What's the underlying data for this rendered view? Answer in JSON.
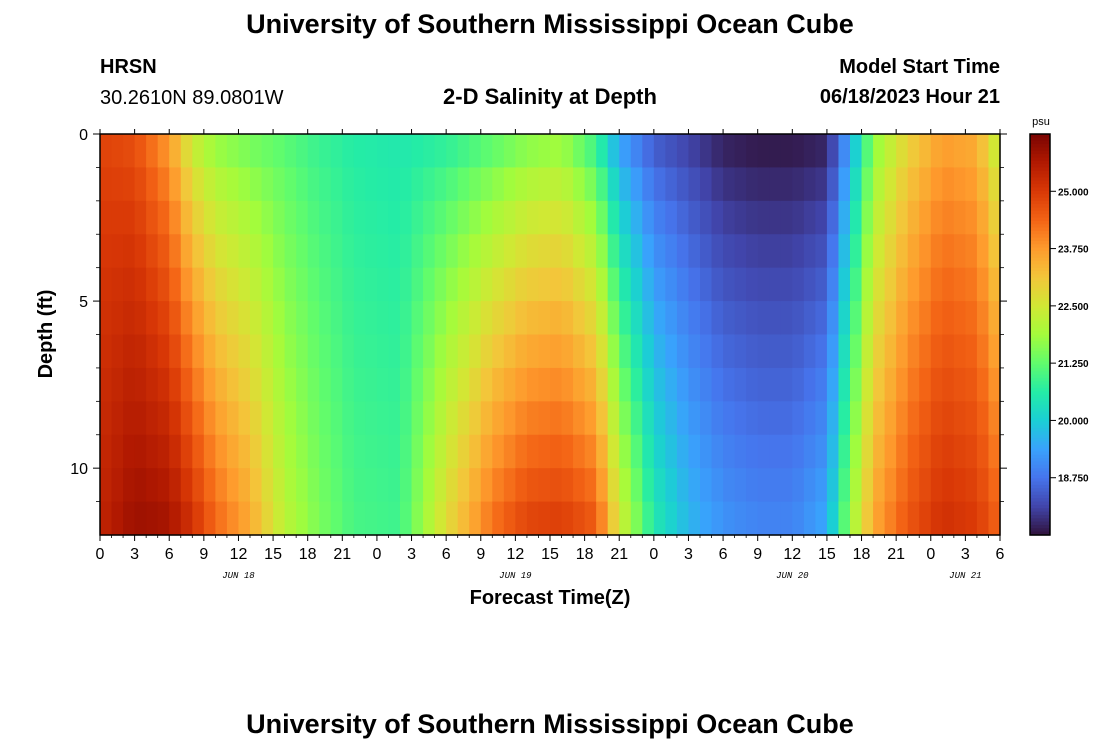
{
  "page": {
    "title": "University of Southern Mississippi Ocean Cube",
    "station_name": "HRSN",
    "station_coords": "30.2610N  89.0801W",
    "subtitle": "2-D Salinity at Depth",
    "model_start_label": "Model Start Time",
    "model_start_value": "06/18/2023 Hour 21",
    "footer_title": "University of Southern Mississippi Ocean Cube"
  },
  "chart_data": {
    "type": "heatmap",
    "title": "2-D Salinity at Depth",
    "xlabel": "Forecast Time(Z)",
    "ylabel": "Depth (ft)",
    "x_hour_ticks": [
      "0",
      "3",
      "6",
      "9",
      "12",
      "15",
      "18",
      "21",
      "0",
      "3",
      "6",
      "9",
      "12",
      "15",
      "18",
      "21",
      "0",
      "3",
      "6",
      "9",
      "12",
      "15",
      "18",
      "21",
      "0",
      "3",
      "6"
    ],
    "x_date_labels": [
      {
        "label": "JUN 18",
        "hour_offset": 12
      },
      {
        "label": "JUN 19",
        "hour_offset": 36
      },
      {
        "label": "JUN 20",
        "hour_offset": 60
      },
      {
        "label": "JUN 21",
        "hour_offset": 75
      }
    ],
    "x_range_hours": [
      0,
      78
    ],
    "y_ticks": [
      {
        "label": "0",
        "value": 0
      },
      {
        "label": "5",
        "value": 5
      },
      {
        "label": "10",
        "value": 10
      }
    ],
    "y_range_ft": [
      0,
      12
    ],
    "colorbar": {
      "unit": "psu",
      "ticks": [
        "25.000",
        "23.750",
        "22.500",
        "21.250",
        "20.000",
        "18.750"
      ],
      "tick_values": [
        25.0,
        23.75,
        22.5,
        21.25,
        20.0,
        18.75
      ],
      "min": 17.5,
      "max": 26.25,
      "colormap_stops": [
        "#30123b",
        "#4145ab",
        "#4675ed",
        "#39a2fc",
        "#1bcfd4",
        "#24eca6",
        "#61fc6c",
        "#a4fc3b",
        "#d1e834",
        "#f3c63a",
        "#fe9b2d",
        "#f36315",
        "#d93806",
        "#b11901",
        "#7a0402"
      ]
    },
    "salinity_keyframes": [
      {
        "hour": 0,
        "surface": 24.8,
        "bottom": 25.4
      },
      {
        "hour": 3,
        "surface": 24.6,
        "bottom": 25.9
      },
      {
        "hour": 6,
        "surface": 23.6,
        "bottom": 25.8
      },
      {
        "hour": 8,
        "surface": 22.2,
        "bottom": 25.2
      },
      {
        "hour": 10,
        "surface": 21.6,
        "bottom": 24.4
      },
      {
        "hour": 13,
        "surface": 21.3,
        "bottom": 23.6
      },
      {
        "hour": 16,
        "surface": 21.1,
        "bottom": 22.2
      },
      {
        "hour": 19,
        "surface": 20.8,
        "bottom": 21.5
      },
      {
        "hour": 22,
        "surface": 20.6,
        "bottom": 21.0
      },
      {
        "hour": 26,
        "surface": 20.5,
        "bottom": 20.9
      },
      {
        "hour": 30,
        "surface": 20.6,
        "bottom": 22.8
      },
      {
        "hour": 34,
        "surface": 21.0,
        "bottom": 24.3
      },
      {
        "hour": 37,
        "surface": 21.4,
        "bottom": 24.9
      },
      {
        "hour": 40,
        "surface": 21.6,
        "bottom": 25.0
      },
      {
        "hour": 43,
        "surface": 20.6,
        "bottom": 24.6
      },
      {
        "hour": 45,
        "surface": 19.2,
        "bottom": 22.6
      },
      {
        "hour": 48,
        "surface": 18.3,
        "bottom": 20.6
      },
      {
        "hour": 51,
        "surface": 18.0,
        "bottom": 19.7
      },
      {
        "hour": 54,
        "surface": 17.6,
        "bottom": 19.2
      },
      {
        "hour": 57,
        "surface": 17.5,
        "bottom": 19.0
      },
      {
        "hour": 60,
        "surface": 17.5,
        "bottom": 19.0
      },
      {
        "hour": 63,
        "surface": 17.6,
        "bottom": 19.5
      },
      {
        "hour": 65,
        "surface": 19.3,
        "bottom": 21.8
      },
      {
        "hour": 67,
        "surface": 21.5,
        "bottom": 23.6
      },
      {
        "hour": 70,
        "surface": 22.8,
        "bottom": 24.6
      },
      {
        "hour": 73,
        "surface": 23.6,
        "bottom": 25.2
      },
      {
        "hour": 76,
        "surface": 23.4,
        "bottom": 25.0
      },
      {
        "hour": 78,
        "surface": 22.0,
        "bottom": 24.4
      }
    ]
  }
}
